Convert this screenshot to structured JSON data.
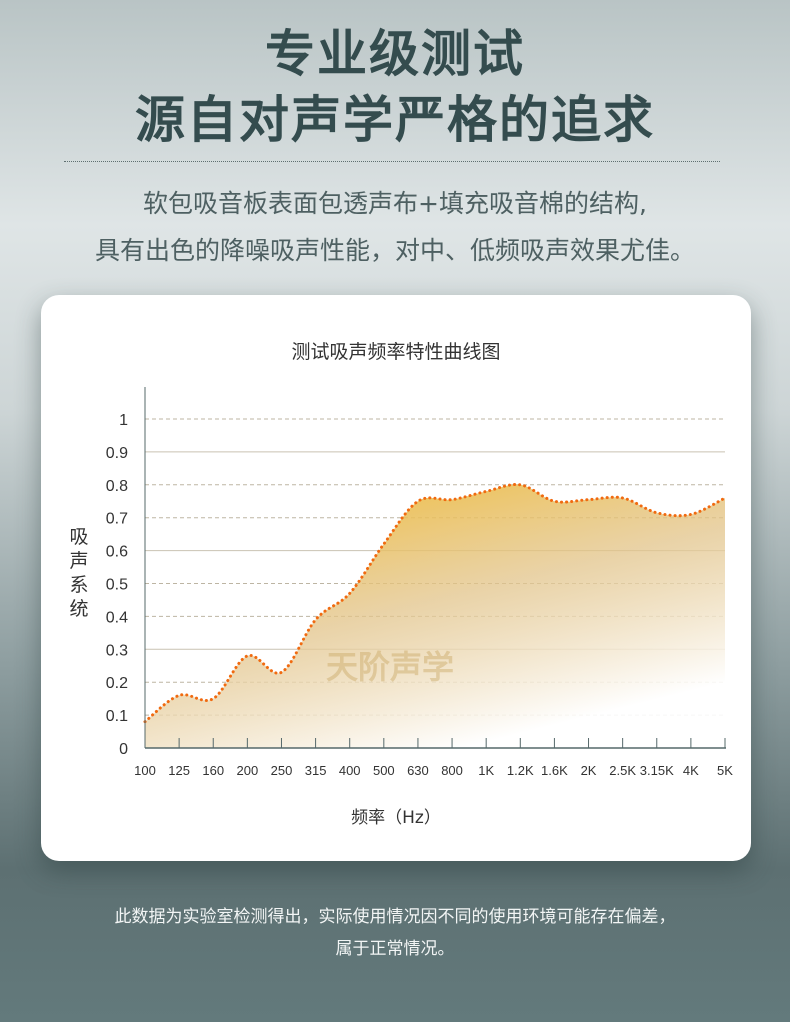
{
  "header": {
    "title_line1": "专业级测试",
    "title_line2": "源自对声学严格的追求",
    "subtitle_line1": "软包吸音板表面包透声布+填充吸音棉的结构,",
    "subtitle_line2": "具有出色的降噪吸声性能，对中、低频吸声效果尤佳。"
  },
  "watermark": "天阶声学",
  "chart_data": {
    "type": "area",
    "title": "测试吸声频率特性曲线图",
    "xlabel": "频率（Hz）",
    "ylabel": "吸声系统",
    "categories": [
      "100",
      "125",
      "160",
      "200",
      "250",
      "315",
      "400",
      "500",
      "630",
      "800",
      "1K",
      "1.2K",
      "1.6K",
      "2K",
      "2.5K",
      "3.15K",
      "4K",
      "5K"
    ],
    "values": [
      0.08,
      0.16,
      0.15,
      0.28,
      0.23,
      0.39,
      0.47,
      0.62,
      0.75,
      0.755,
      0.78,
      0.8,
      0.75,
      0.755,
      0.76,
      0.715,
      0.71,
      0.76
    ],
    "yticks": [
      "0",
      "0.1",
      "0.2",
      "0.3",
      "0.4",
      "0.5",
      "0.6",
      "0.7",
      "0.8",
      "0.9",
      "1"
    ],
    "ylim": [
      0,
      1
    ],
    "grid": true,
    "line_color": "#f06a10",
    "fill_color": "#f2b824"
  },
  "footer": {
    "note_line1": "此数据为实验室检测得出，实际使用情况因不同的使用环境可能存在偏差，",
    "note_line2": "属于正常情况。"
  }
}
